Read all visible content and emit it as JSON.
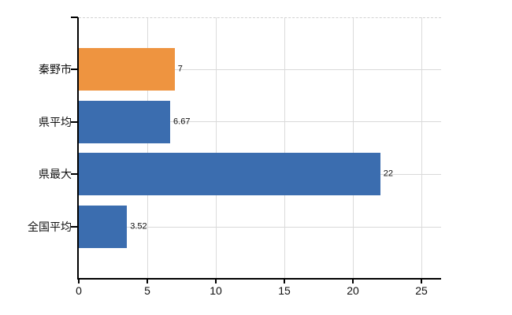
{
  "chart_data": {
    "type": "bar",
    "orientation": "horizontal",
    "title": "",
    "xlabel": "",
    "ylabel": "",
    "legend": "none",
    "grid": "on",
    "categories": [
      "秦野市",
      "県平均",
      "県最大",
      "全国平均"
    ],
    "values": [
      7,
      6.67,
      22,
      3.52
    ],
    "value_labels": [
      "7",
      "6.67",
      "22",
      "3.52"
    ],
    "series_colors": [
      "#EE9440",
      "#3B6DAF",
      "#3B6DAF",
      "#3B6DAF"
    ],
    "x_axis": {
      "tick_labels": [
        "0",
        "5",
        "10",
        "15",
        "20",
        "25"
      ],
      "tick_values": [
        0,
        5,
        10,
        15,
        20,
        25
      ],
      "range": [
        0,
        26.4
      ]
    },
    "colors": {
      "highlight_bar": "#EE9440",
      "default_bar": "#3B6DAF",
      "gridline": "#D9D9D9",
      "plot_border_dashed": "#D2D2D2",
      "axis": "#000000",
      "label_text": "#111111"
    }
  }
}
